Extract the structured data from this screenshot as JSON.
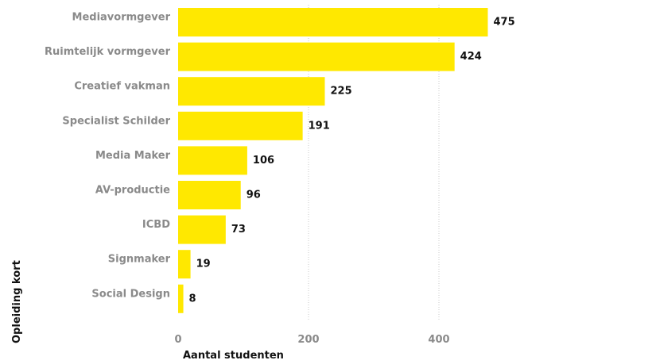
{
  "chart_data": {
    "type": "bar",
    "orientation": "horizontal",
    "categories": [
      "Mediavormgever",
      "Ruimtelijk vormgever",
      "Creatief vakman",
      "Specialist Schilder",
      "Media Maker",
      "AV-productie",
      "ICBD",
      "Signmaker",
      "Social Design"
    ],
    "values": [
      475,
      424,
      225,
      191,
      106,
      96,
      73,
      19,
      8
    ],
    "xlabel": "Aantal studenten",
    "ylabel": "Opleiding kort",
    "xlim": [
      0,
      480
    ],
    "xticks": [
      0,
      200,
      400
    ],
    "grid": "vertical-dotted",
    "bar_color": "#ffe800"
  }
}
